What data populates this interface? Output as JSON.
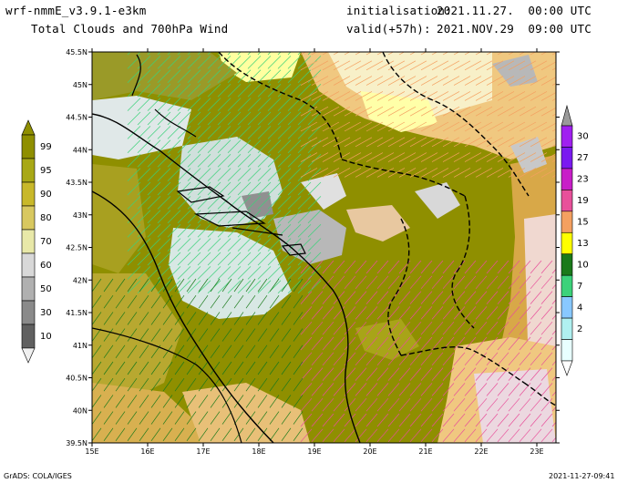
{
  "header": {
    "model": "wrf-nmmE_v3.9.1-e3km",
    "product": "Total Clouds and 700hPa Wind",
    "init_label": "initialisation:",
    "init_value": "2021.11.27.  00:00 UTC",
    "valid_label": "valid(+57h):",
    "valid_value": "2021.NOV.29  09:00 UTC"
  },
  "map": {
    "lat_ticks": [
      "45.5N",
      "45N",
      "44.5N",
      "44N",
      "43.5N",
      "43N",
      "42.5N",
      "42N",
      "41.5N",
      "41N",
      "40.5N",
      "40N",
      "39.5N"
    ],
    "lon_ticks": [
      "15E",
      "16E",
      "17E",
      "18E",
      "19E",
      "20E",
      "21E",
      "22E",
      "23E"
    ]
  },
  "cloud_colorbar": {
    "labels": [
      "99",
      "95",
      "90",
      "80",
      "70",
      "60",
      "50",
      "30",
      "10"
    ],
    "colors": [
      "#8f8f00",
      "#a8a816",
      "#c8b82a",
      "#d8c860",
      "#e8e8a8",
      "#d8d8d8",
      "#b0b0b0",
      "#8a8a8a",
      "#606060",
      "#404040"
    ]
  },
  "wind_colorbar": {
    "labels": [
      "30",
      "27",
      "23",
      "19",
      "15",
      "13",
      "10",
      "7",
      "4",
      "2"
    ],
    "colors": [
      "#a020f0",
      "#7a1af0",
      "#c81ec8",
      "#e8509a",
      "#f4a060",
      "#ffff00",
      "#1a7a1a",
      "#3cd27a",
      "#88c8ff",
      "#b0f0f0",
      "#e8ffff"
    ]
  },
  "footer": {
    "left": "GrADS: COLA/IGES",
    "right": "2021-11-27-09:41"
  }
}
